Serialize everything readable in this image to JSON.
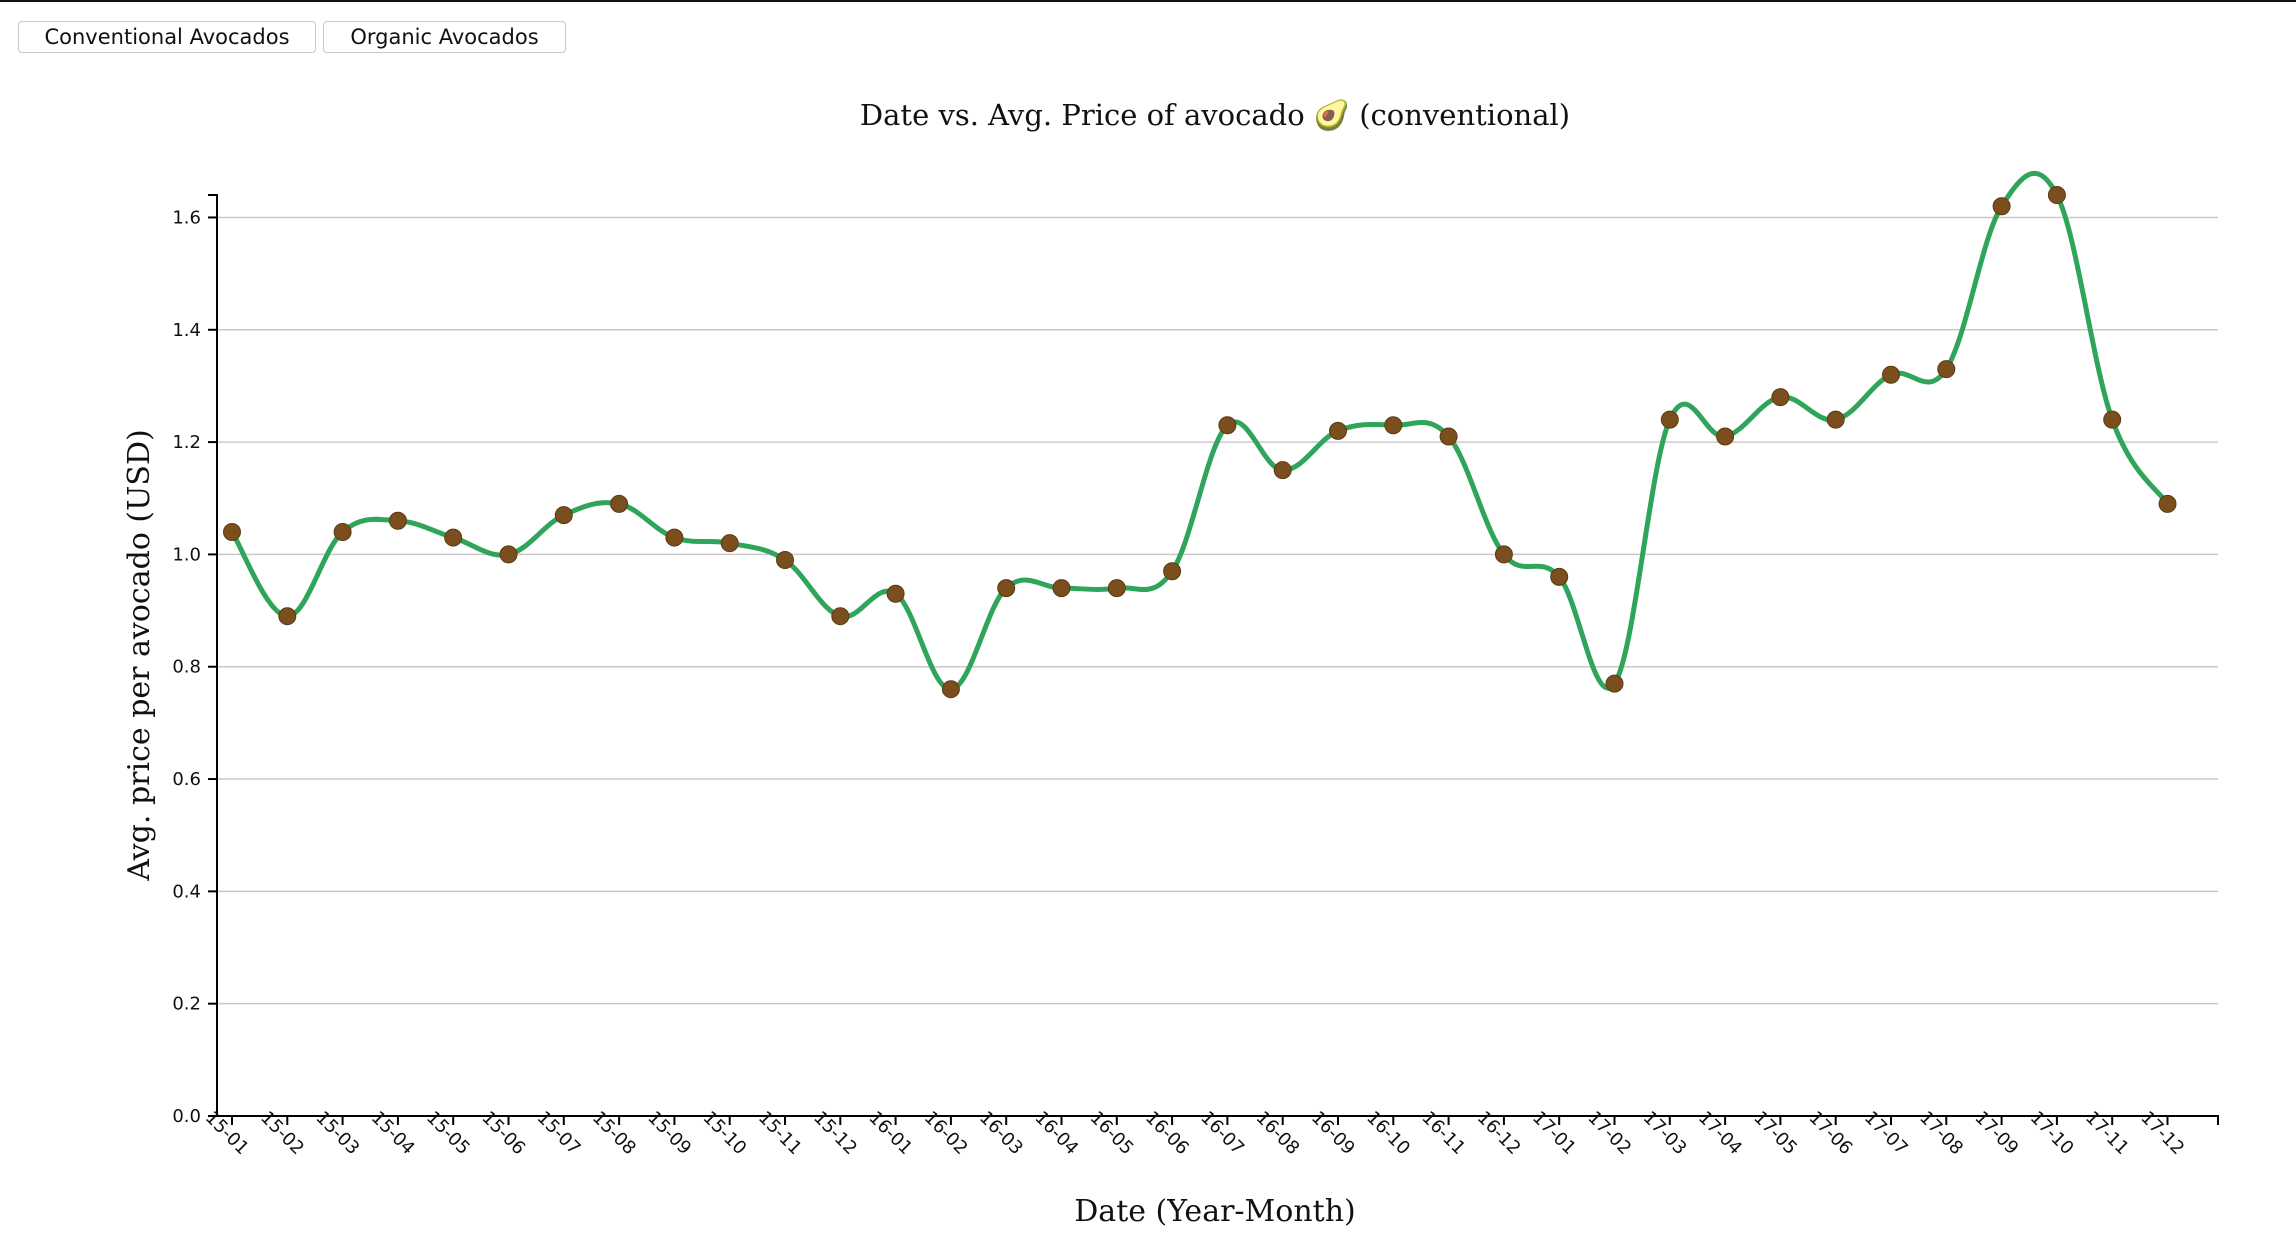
{
  "buttons": {
    "conventional": "Conventional Avocados",
    "organic": "Organic Avocados"
  },
  "colors": {
    "line": "#2ea55a",
    "point": "#7a4f1d",
    "point_stroke": "#5a3a14",
    "grid": "#c9c9c9"
  },
  "chart_data": {
    "type": "line",
    "title": "Date vs. Avg. Price of avocado 🥑 (conventional)",
    "xlabel": "Date (Year-Month)",
    "ylabel": "Avg. price per avocado (USD)",
    "ylim": [
      0,
      1.64
    ],
    "yticks": [
      "0.0",
      "0.2",
      "0.4",
      "0.6",
      "0.8",
      "1.0",
      "1.2",
      "1.4",
      "1.6"
    ],
    "grid": true,
    "curve": "smooth",
    "categories": [
      "15-01",
      "15-02",
      "15-03",
      "15-04",
      "15-05",
      "15-06",
      "15-07",
      "15-08",
      "15-09",
      "15-10",
      "15-11",
      "15-12",
      "16-01",
      "16-02",
      "16-03",
      "16-04",
      "16-05",
      "16-06",
      "16-07",
      "16-08",
      "16-09",
      "16-10",
      "16-11",
      "16-12",
      "17-01",
      "17-02",
      "17-03",
      "17-04",
      "17-05",
      "17-06",
      "17-07",
      "17-08",
      "17-09",
      "17-10",
      "17-11",
      "17-12"
    ],
    "series": [
      {
        "values": [
          1.04,
          0.89,
          1.04,
          1.06,
          1.03,
          1.0,
          1.07,
          1.09,
          1.03,
          1.02,
          0.99,
          0.89,
          0.93,
          0.76,
          0.94,
          0.94,
          0.94,
          0.97,
          1.23,
          1.15,
          1.22,
          1.23,
          1.21,
          1.0,
          0.96,
          0.77,
          1.24,
          1.21,
          1.28,
          1.24,
          1.32,
          1.33,
          1.62,
          1.64,
          1.24,
          1.09
        ]
      }
    ]
  }
}
